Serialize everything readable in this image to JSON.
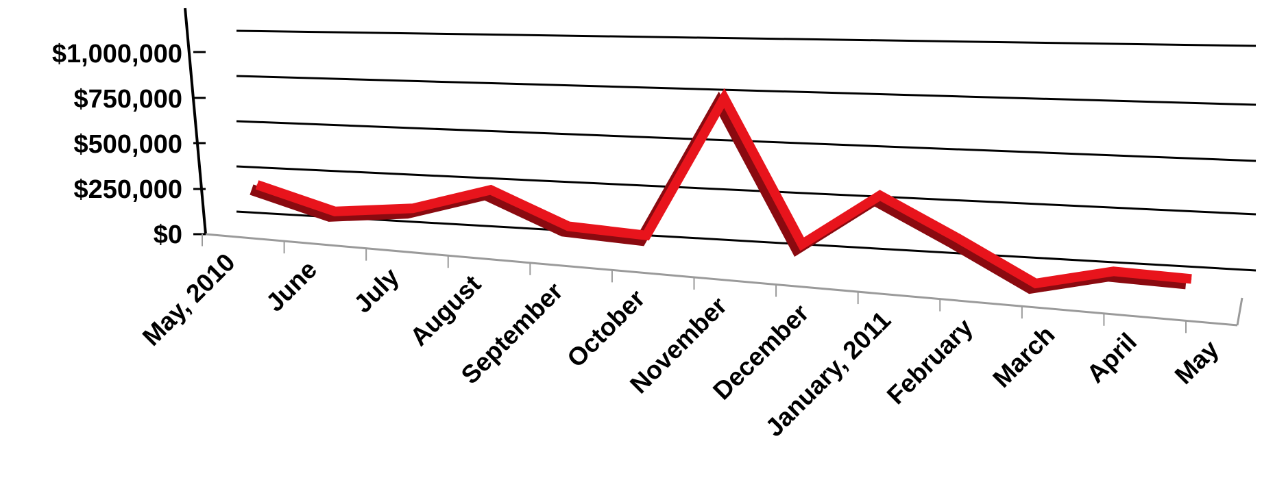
{
  "chart_data": {
    "type": "line",
    "style": "3d-ribbon",
    "categories": [
      "May, 2010",
      "June",
      "July",
      "August",
      "September",
      "October",
      "November",
      "December",
      "January, 2011",
      "February",
      "March",
      "April",
      "May"
    ],
    "series": [
      {
        "values": [
          140000,
          0,
          60000,
          220000,
          20000,
          0,
          910000,
          20000,
          360000,
          130000,
          -110000,
          0,
          -10000
        ]
      }
    ],
    "y_ticks": [
      "$0",
      "$250,000",
      "$500,000",
      "$750,000",
      "$1,000,000"
    ],
    "ylim": [
      0,
      1000000
    ],
    "grid": true,
    "legend": "none",
    "colors": {
      "line": "#e8141c",
      "line_side": "#8a0a10",
      "grid": "#000000",
      "axis": "#9a9a9a"
    }
  }
}
